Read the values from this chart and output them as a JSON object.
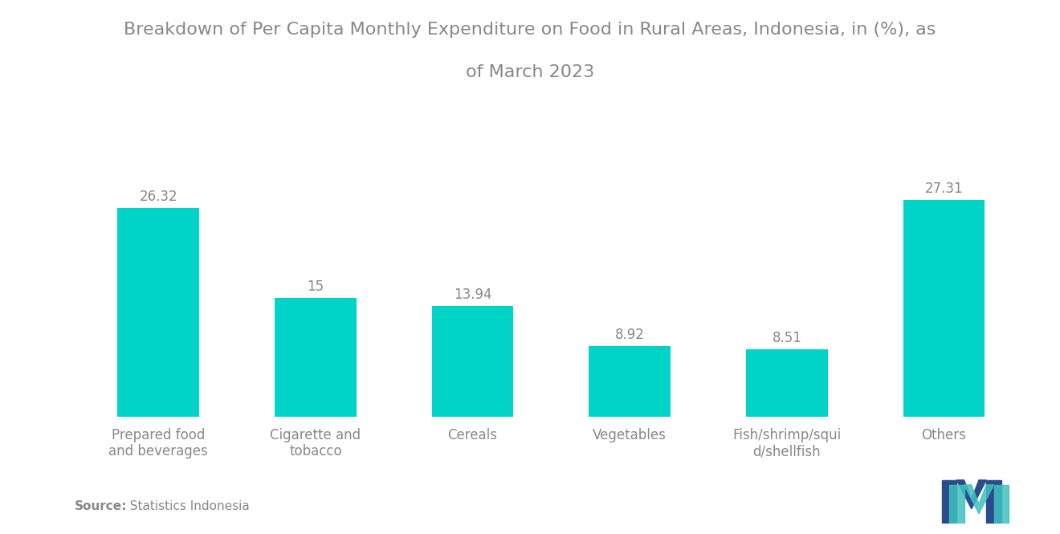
{
  "title_line1": "Breakdown of Per Capita Monthly Expenditure on Food in Rural Areas, Indonesia, in (%), as",
  "title_line2": "of March 2023",
  "categories": [
    "Prepared food\nand beverages",
    "Cigarette and\ntobacco",
    "Cereals",
    "Vegetables",
    "Fish/shrimp/squi\nd/shellfish",
    "Others"
  ],
  "values": [
    26.32,
    15.0,
    13.94,
    8.92,
    8.51,
    27.31
  ],
  "bar_color": "#00D4C8",
  "background_color": "#ffffff",
  "label_color": "#888888",
  "title_color": "#888888",
  "source_bold": "Source:",
  "source_rest": "  Statistics Indonesia",
  "ylim": [
    0,
    35
  ],
  "bar_width": 0.52,
  "title_fontsize": 16,
  "label_fontsize": 12,
  "value_fontsize": 12,
  "source_fontsize": 11
}
